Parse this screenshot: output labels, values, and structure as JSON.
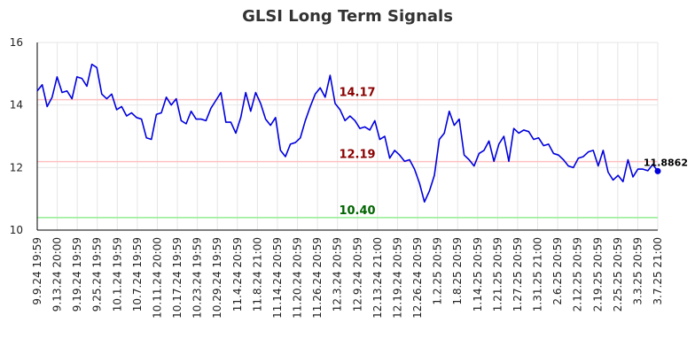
{
  "chart_data": {
    "type": "line",
    "title": "GLSI Long Term Signals",
    "ylim": [
      10,
      16
    ],
    "yticks": [
      "10",
      "12",
      "14",
      "16"
    ],
    "grid": true,
    "x_tick_labels": [
      "9.9.24 19:59",
      "9.13.24 20:00",
      "9.19.24 19:59",
      "9.25.24 19:59",
      "10.1.24 19:59",
      "10.7.24 19:59",
      "10.11.24 20:00",
      "10.17.24 19:59",
      "10.23.24 19:59",
      "10.29.24 19:59",
      "11.4.24 20:59",
      "11.8.24 21:00",
      "11.14.24 20:59",
      "11.20.24 20:59",
      "11.26.24 20:59",
      "12.3.24 20:59",
      "12.9.24 20:59",
      "12.13.24 21:00",
      "12.19.24 20:59",
      "12.26.24 20:59",
      "1.2.25 20:59",
      "1.8.25 20:59",
      "1.14.25 20:59",
      "1.21.25 20:59",
      "1.27.25 20:59",
      "1.31.25 21:00",
      "2.6.25 20:59",
      "2.12.25 20:59",
      "2.19.25 20:59",
      "2.25.25 20:59",
      "3.3.25 20:59",
      "3.7.25 21:00"
    ],
    "levels": [
      {
        "value": 14.17,
        "label": "14.17",
        "line_color": "#ffc0c0",
        "text_color": "#8b0000"
      },
      {
        "value": 12.19,
        "label": "12.19",
        "line_color": "#ffc0c0",
        "text_color": "#8b0000"
      },
      {
        "value": 10.4,
        "label": "10.40",
        "line_color": "#90ee90",
        "text_color": "#006400"
      }
    ],
    "series": [
      {
        "color": "#0000dd",
        "values": [
          14.45,
          14.65,
          13.95,
          14.25,
          14.9,
          14.4,
          14.45,
          14.2,
          14.9,
          14.85,
          14.6,
          15.3,
          15.2,
          14.35,
          14.2,
          14.35,
          13.85,
          13.95,
          13.65,
          13.75,
          13.6,
          13.55,
          12.95,
          12.9,
          13.7,
          13.75,
          14.25,
          14.0,
          14.2,
          13.5,
          13.4,
          13.8,
          13.55,
          13.55,
          13.5,
          13.9,
          14.15,
          14.4,
          13.45,
          13.45,
          13.1,
          13.6,
          14.4,
          13.8,
          14.4,
          14.05,
          13.55,
          13.35,
          13.6,
          12.55,
          12.35,
          12.75,
          12.8,
          12.95,
          13.5,
          13.95,
          14.35,
          14.55,
          14.25,
          14.95,
          14.05,
          13.85,
          13.5,
          13.65,
          13.5,
          13.25,
          13.3,
          13.2,
          13.5,
          12.9,
          13.0,
          12.3,
          12.55,
          12.4,
          12.2,
          12.25,
          11.95,
          11.5,
          10.9,
          11.25,
          11.75,
          12.9,
          13.1,
          13.8,
          13.35,
          13.55,
          12.4,
          12.25,
          12.05,
          12.45,
          12.55,
          12.85,
          12.2,
          12.75,
          13.0,
          12.2,
          13.25,
          13.1,
          13.2,
          13.15,
          12.9,
          12.95,
          12.7,
          12.75,
          12.45,
          12.4,
          12.25,
          12.05,
          12.0,
          12.3,
          12.35,
          12.5,
          12.55,
          12.05,
          12.55,
          11.85,
          11.6,
          11.75,
          11.55,
          12.25,
          11.7,
          11.95,
          11.95,
          11.9,
          12.1,
          11.8862
        ],
        "last_value_label": "11.8862"
      }
    ]
  }
}
